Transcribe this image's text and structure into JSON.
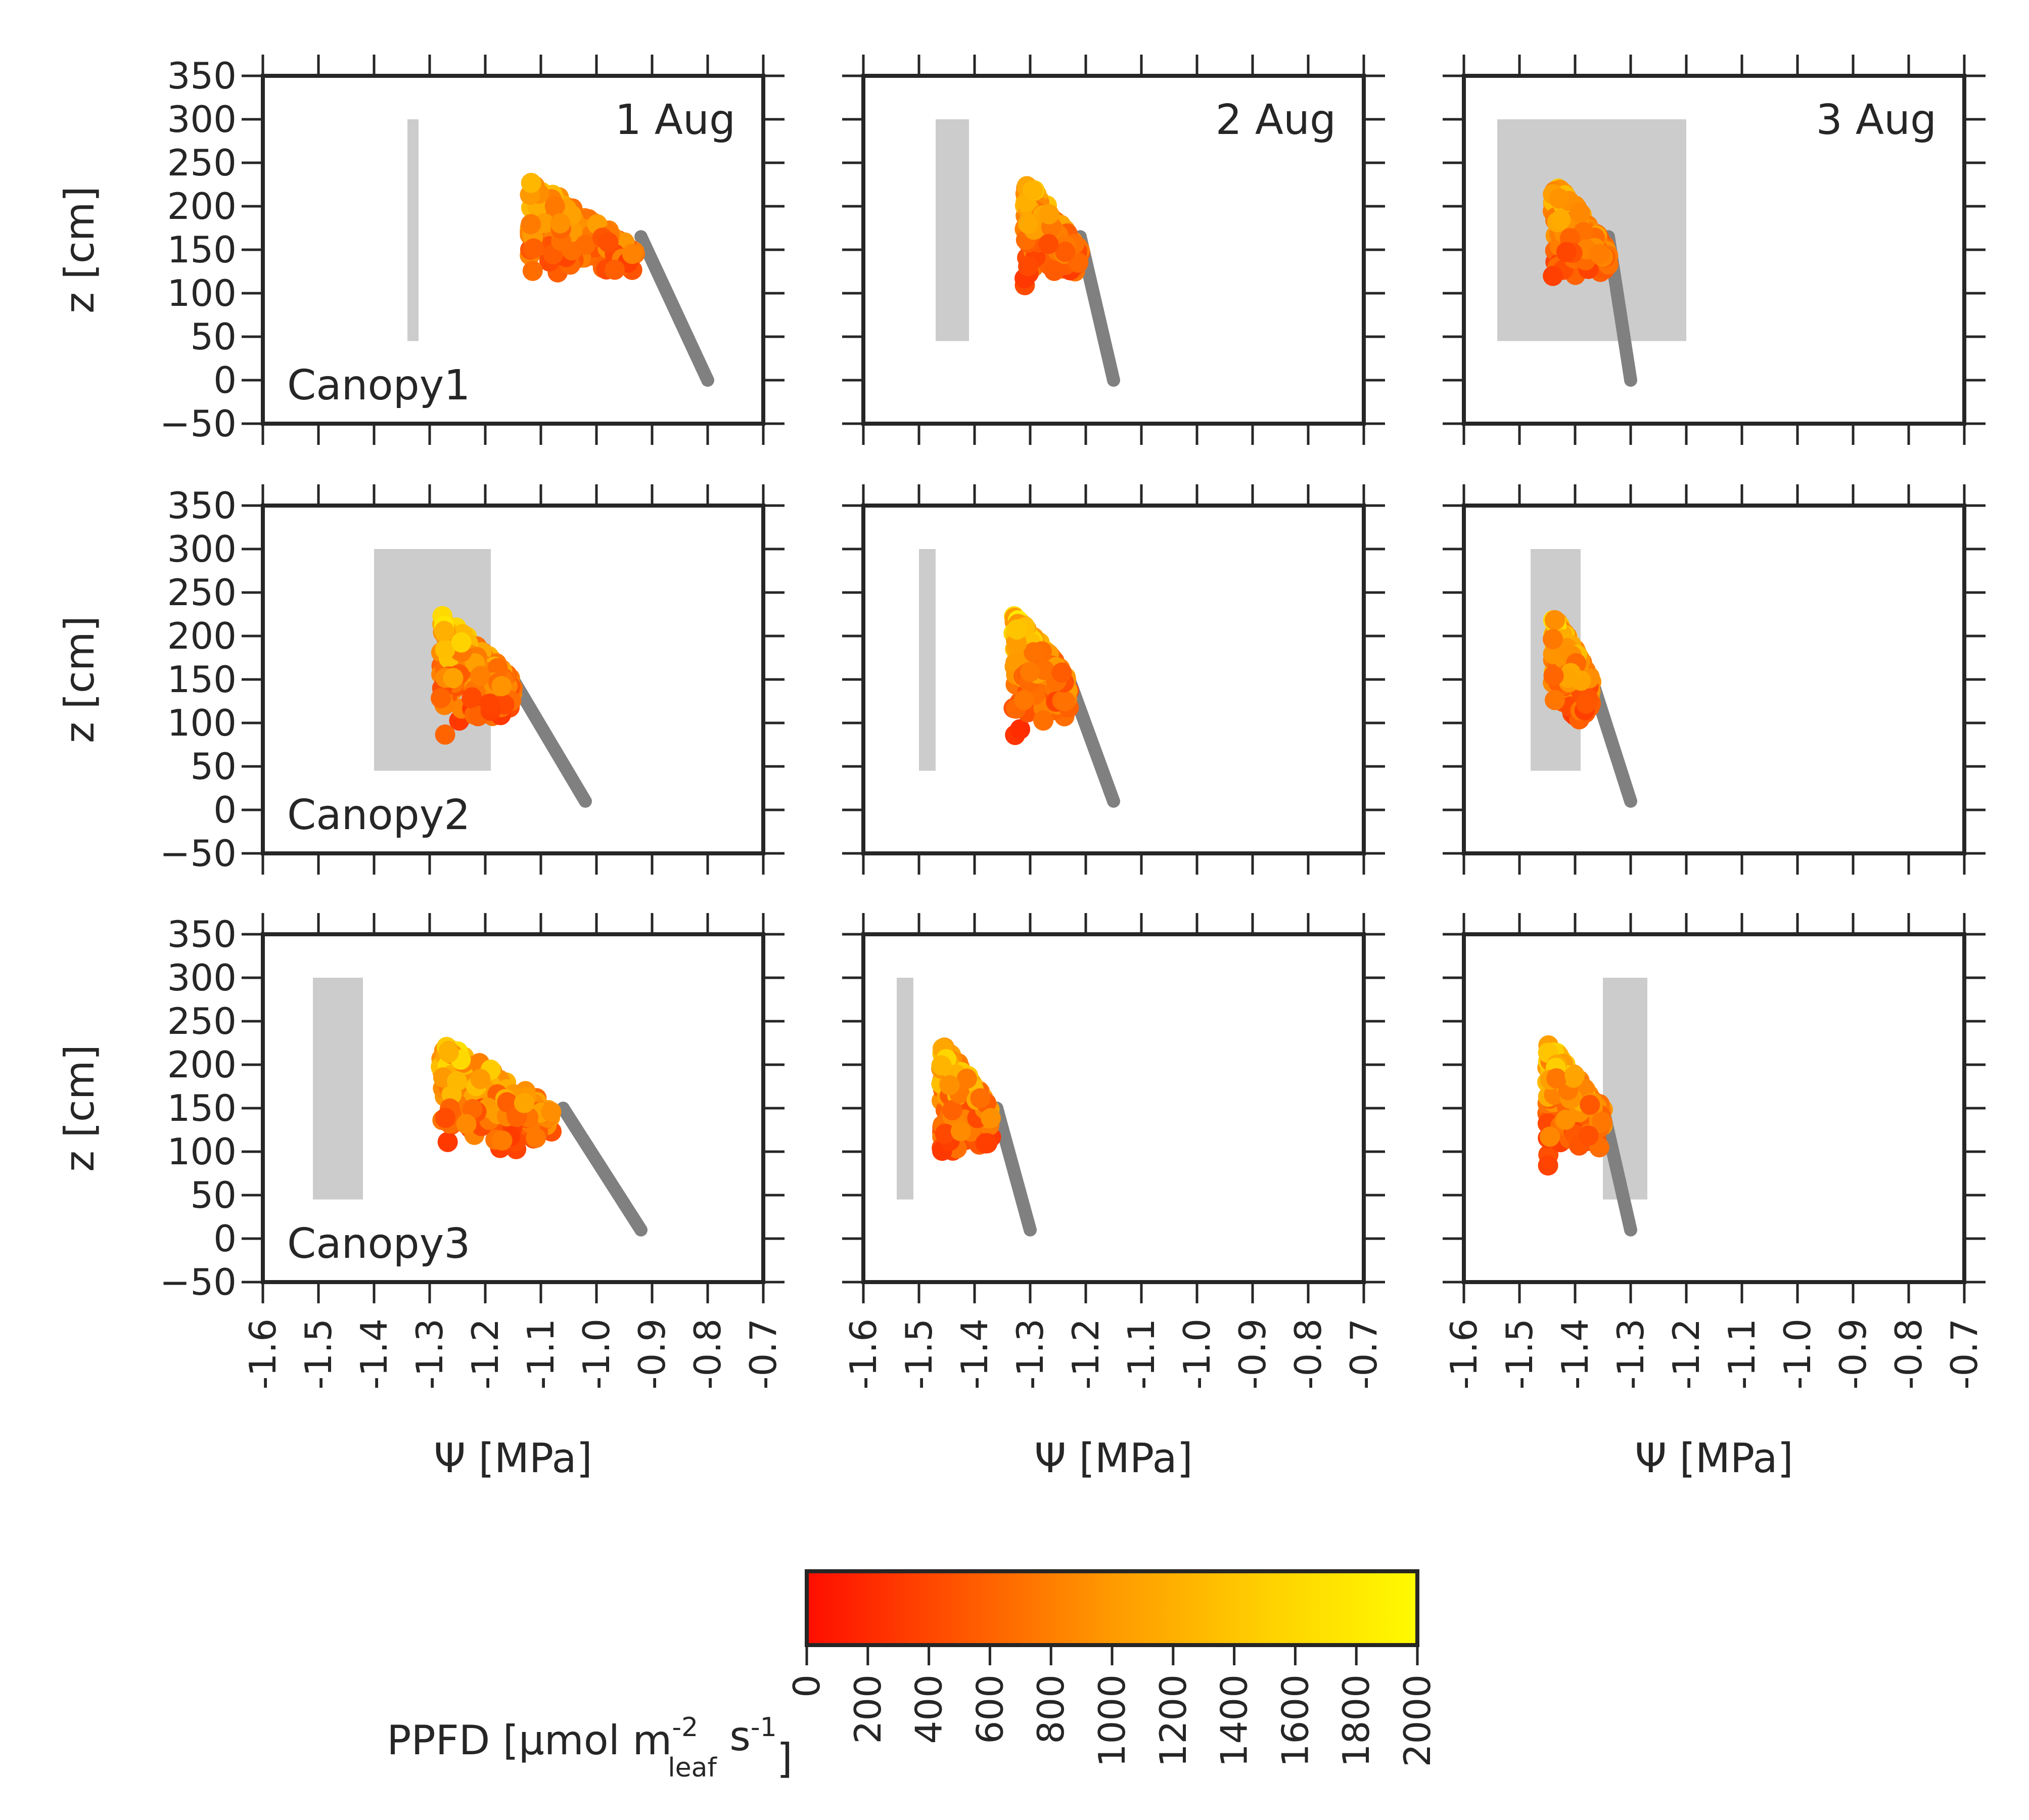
{
  "chart_data": {
    "type": "scatter",
    "layout": "3x3 grid, rows = canopies, columns = days",
    "x_axis": {
      "label": "Ψ [MPa]",
      "range": [
        -1.6,
        -0.7
      ],
      "ticks": [
        -1.6,
        -1.5,
        -1.4,
        -1.3,
        -1.2,
        -1.1,
        -1.0,
        -0.9,
        -0.8,
        -0.7
      ],
      "tick_labels": [
        "-1.6",
        "-1.5",
        "-1.4",
        "-1.3",
        "-1.2",
        "-1.1",
        "-1.0",
        "-0.9",
        "-0.8",
        "-0.7"
      ],
      "tick_label_rotation": "vertical"
    },
    "y_axis": {
      "label": "z [cm]",
      "range": [
        -50,
        350
      ],
      "ticks": [
        -50,
        0,
        50,
        100,
        150,
        200,
        250,
        300,
        350
      ],
      "tick_labels": [
        "−50",
        "0",
        "50",
        "100",
        "150",
        "200",
        "250",
        "300",
        "350"
      ]
    },
    "grid": false,
    "column_titles": [
      "1 Aug",
      "2 Aug",
      "3 Aug"
    ],
    "row_labels": [
      "Canopy1",
      "Canopy2",
      "Canopy3"
    ],
    "colorbar": {
      "label": "PPFD [μmol m-2leaf s-1]",
      "label_parts": {
        "main": "PPFD [μmol m",
        "sup1": "-2",
        "sub": "leaf",
        "mid": " s",
        "sup2": "-1",
        "end": "]"
      },
      "range": [
        0,
        2000
      ],
      "ticks": [
        "0",
        "200",
        "400",
        "600",
        "800",
        "1000",
        "1200",
        "1400",
        "1600",
        "1800",
        "2000"
      ],
      "colormap": [
        "#ff0d00",
        "#ff5500",
        "#ff9a00",
        "#ffd000",
        "#fffb00"
      ],
      "orientation": "horizontal",
      "placement": "bottom-center"
    },
    "panel_style": {
      "stem_color": "#808080",
      "measurement_box_color": "#cccccc"
    },
    "panels": [
      {
        "row": 0,
        "col": 0,
        "box": {
          "x": [
            -1.34,
            -1.32
          ],
          "z": [
            45,
            300
          ]
        },
        "stem": {
          "from": [
            -0.8,
            0
          ],
          "to": [
            -0.92,
            165
          ]
        },
        "leaf_cloud": {
          "x": [
            -1.12,
            -0.93
          ],
          "z": [
            95,
            230
          ],
          "ppfd": [
            200,
            1700
          ]
        }
      },
      {
        "row": 0,
        "col": 1,
        "box": {
          "x": [
            -1.47,
            -1.41
          ],
          "z": [
            45,
            300
          ]
        },
        "stem": {
          "from": [
            -1.15,
            0
          ],
          "to": [
            -1.21,
            165
          ]
        },
        "leaf_cloud": {
          "x": [
            -1.31,
            -1.21
          ],
          "z": [
            95,
            230
          ],
          "ppfd": [
            200,
            1700
          ]
        }
      },
      {
        "row": 0,
        "col": 2,
        "box": {
          "x": [
            -1.54,
            -1.2
          ],
          "z": [
            45,
            300
          ]
        },
        "stem": {
          "from": [
            -1.3,
            0
          ],
          "to": [
            -1.34,
            165
          ]
        },
        "leaf_cloud": {
          "x": [
            -1.44,
            -1.34
          ],
          "z": [
            95,
            230
          ],
          "ppfd": [
            200,
            1700
          ]
        }
      },
      {
        "row": 1,
        "col": 0,
        "box": {
          "x": [
            -1.4,
            -1.19
          ],
          "z": [
            45,
            300
          ]
        },
        "stem": {
          "from": [
            -1.02,
            10
          ],
          "to": [
            -1.15,
            150
          ]
        },
        "leaf_cloud": {
          "x": [
            -1.28,
            -1.15
          ],
          "z": [
            65,
            225
          ],
          "ppfd": [
            100,
            1900
          ]
        }
      },
      {
        "row": 1,
        "col": 1,
        "box": {
          "x": [
            -1.5,
            -1.47
          ],
          "z": [
            45,
            300
          ]
        },
        "stem": {
          "from": [
            -1.15,
            10
          ],
          "to": [
            -1.23,
            150
          ]
        },
        "leaf_cloud": {
          "x": [
            -1.33,
            -1.23
          ],
          "z": [
            65,
            225
          ],
          "ppfd": [
            100,
            1900
          ]
        }
      },
      {
        "row": 1,
        "col": 2,
        "box": {
          "x": [
            -1.48,
            -1.39
          ],
          "z": [
            45,
            300
          ]
        },
        "stem": {
          "from": [
            -1.3,
            10
          ],
          "to": [
            -1.37,
            150
          ]
        },
        "leaf_cloud": {
          "x": [
            -1.44,
            -1.37
          ],
          "z": [
            65,
            225
          ],
          "ppfd": [
            100,
            1900
          ]
        }
      },
      {
        "row": 2,
        "col": 0,
        "box": {
          "x": [
            -1.51,
            -1.42
          ],
          "z": [
            45,
            300
          ]
        },
        "stem": {
          "from": [
            -0.92,
            10
          ],
          "to": [
            -1.06,
            150
          ]
        },
        "leaf_cloud": {
          "x": [
            -1.28,
            -1.08
          ],
          "z": [
            65,
            225
          ],
          "ppfd": [
            100,
            1900
          ]
        }
      },
      {
        "row": 2,
        "col": 1,
        "box": {
          "x": [
            -1.54,
            -1.51
          ],
          "z": [
            45,
            300
          ]
        },
        "stem": {
          "from": [
            -1.3,
            10
          ],
          "to": [
            -1.36,
            150
          ]
        },
        "leaf_cloud": {
          "x": [
            -1.46,
            -1.37
          ],
          "z": [
            65,
            225
          ],
          "ppfd": [
            100,
            1900
          ]
        }
      },
      {
        "row": 2,
        "col": 2,
        "box": {
          "x": [
            -1.35,
            -1.27
          ],
          "z": [
            45,
            300
          ]
        },
        "stem": {
          "from": [
            -1.3,
            10
          ],
          "to": [
            -1.35,
            150
          ]
        },
        "leaf_cloud": {
          "x": [
            -1.45,
            -1.35
          ],
          "z": [
            65,
            225
          ],
          "ppfd": [
            100,
            1900
          ]
        }
      }
    ]
  }
}
